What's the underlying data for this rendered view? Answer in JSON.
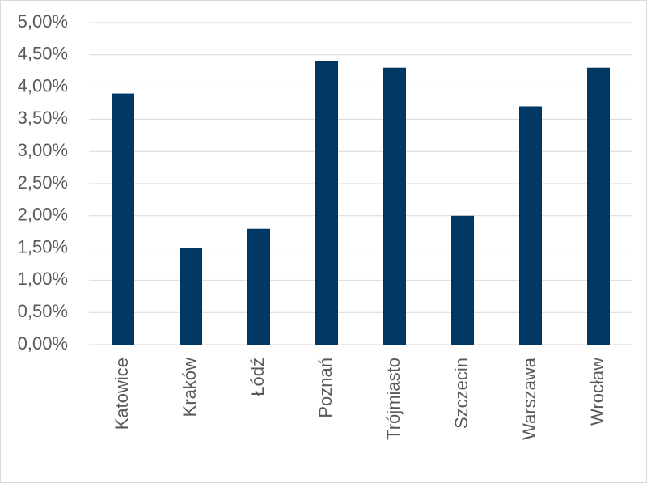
{
  "chart_data": {
    "type": "bar",
    "categories": [
      "Katowice",
      "Kraków",
      "Łódź",
      "Poznań",
      "Trójmiasto",
      "Szczecin",
      "Warszawa",
      "Wrocław"
    ],
    "values": [
      3.9,
      1.5,
      1.8,
      4.4,
      4.3,
      2.0,
      3.7,
      4.3
    ],
    "color": "#003863",
    "ylim": [
      0,
      5
    ],
    "yticks": [
      {
        "value": 0,
        "label": "0,00%"
      },
      {
        "value": 0.5,
        "label": "0,50%"
      },
      {
        "value": 1,
        "label": "1,00%"
      },
      {
        "value": 1.5,
        "label": "1,50%"
      },
      {
        "value": 2,
        "label": "2,00%"
      },
      {
        "value": 2.5,
        "label": "2,50%"
      },
      {
        "value": 3,
        "label": "3,00%"
      },
      {
        "value": 3.5,
        "label": "3,50%"
      },
      {
        "value": 4,
        "label": "4,00%"
      },
      {
        "value": 4.5,
        "label": "4,50%"
      },
      {
        "value": 5,
        "label": "5,00%"
      }
    ],
    "grid": true
  }
}
